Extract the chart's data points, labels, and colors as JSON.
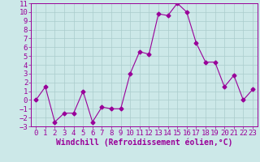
{
  "x": [
    0,
    1,
    2,
    3,
    4,
    5,
    6,
    7,
    8,
    9,
    10,
    11,
    12,
    13,
    14,
    15,
    16,
    17,
    18,
    19,
    20,
    21,
    22,
    23
  ],
  "y": [
    0,
    1.5,
    -2.5,
    -1.5,
    -1.5,
    1.0,
    -2.5,
    -0.8,
    -1.0,
    -1.0,
    3.0,
    5.5,
    5.2,
    9.8,
    9.6,
    11.0,
    10.0,
    6.5,
    4.3,
    4.3,
    1.5,
    2.8,
    0.0,
    1.2
  ],
  "color": "#990099",
  "bg_color": "#cce8e8",
  "grid_color": "#aacccc",
  "xlabel": "Windchill (Refroidissement éolien,°C)",
  "ylim": [
    -3,
    11
  ],
  "xlim": [
    -0.5,
    23.5
  ],
  "yticks": [
    -3,
    -2,
    -1,
    0,
    1,
    2,
    3,
    4,
    5,
    6,
    7,
    8,
    9,
    10,
    11
  ],
  "xticks": [
    0,
    1,
    2,
    3,
    4,
    5,
    6,
    7,
    8,
    9,
    10,
    11,
    12,
    13,
    14,
    15,
    16,
    17,
    18,
    19,
    20,
    21,
    22,
    23
  ],
  "marker": "D",
  "markersize": 2.5,
  "linewidth": 0.8,
  "font_size": 6.5,
  "xlabel_fontsize": 7
}
